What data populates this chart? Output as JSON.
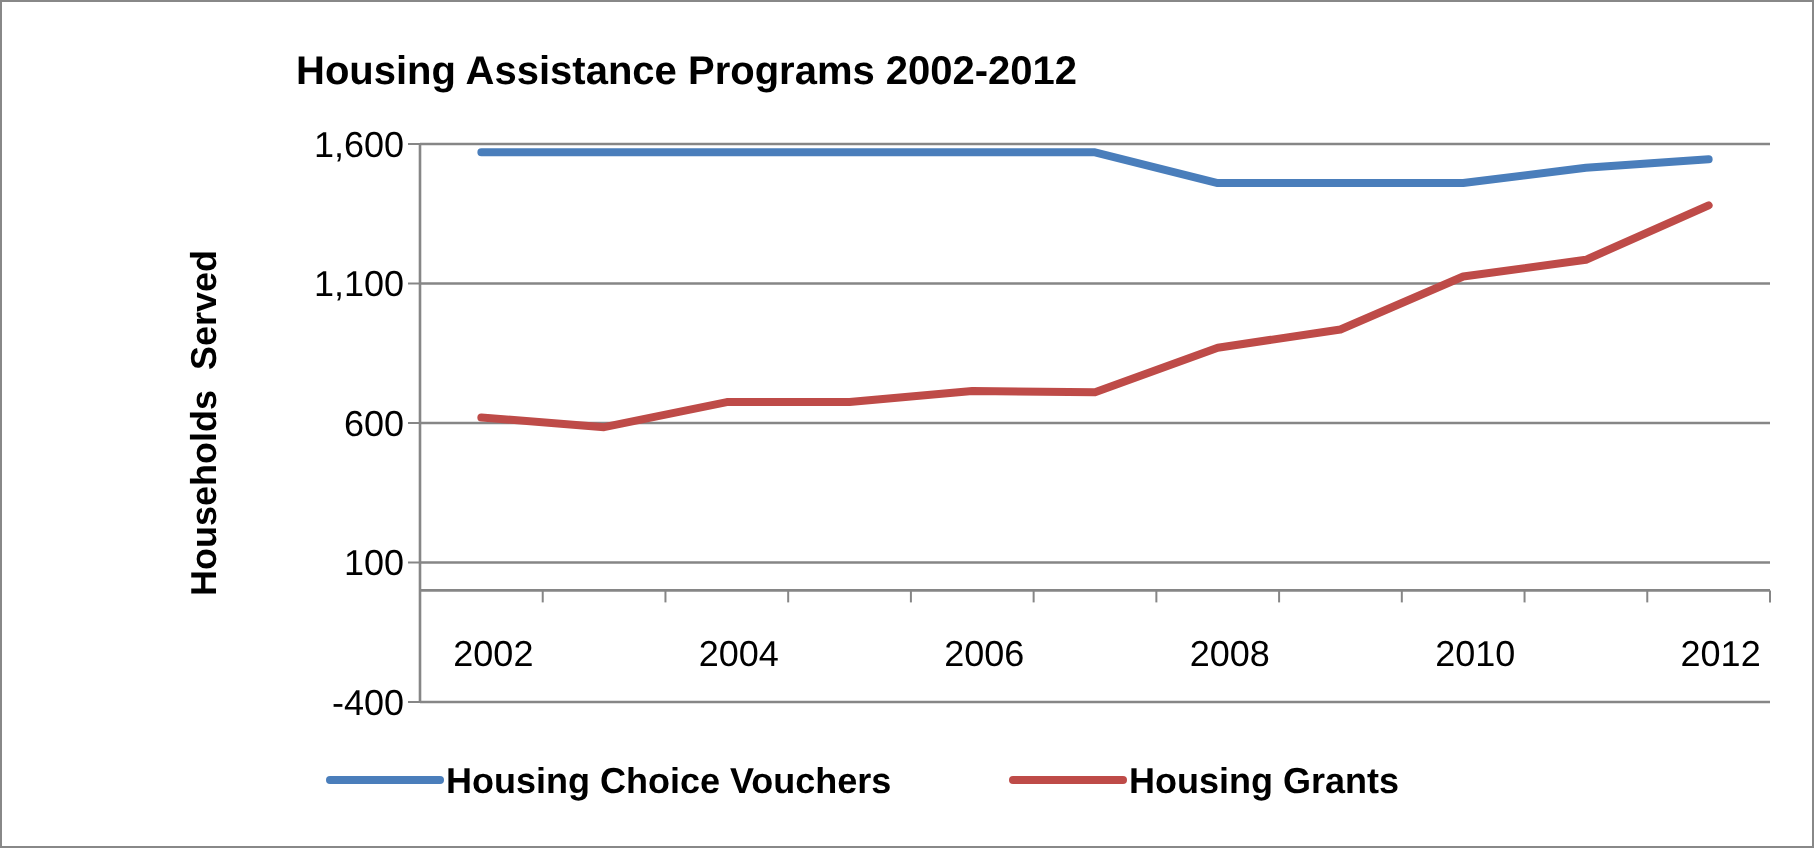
{
  "chart_data": {
    "type": "line",
    "title": "Housing Assistance Programs 2002-2012",
    "ylabel": "Households  Served",
    "categories": [
      "2002",
      null,
      "2004",
      null,
      "2006",
      null,
      "2008",
      null,
      "2010",
      null,
      "2012"
    ],
    "series": [
      {
        "name": "Housing Choice Vouchers",
        "color": "#4a7ebb",
        "values": [
          1570,
          1570,
          1570,
          1570,
          1570,
          1570,
          1460,
          1460,
          1460,
          1515,
          1545
        ]
      },
      {
        "name": "Housing Grants",
        "color": "#be4b48",
        "values": [
          620,
          585,
          675,
          675,
          715,
          710,
          870,
          935,
          1125,
          1185,
          1380
        ]
      }
    ],
    "ylim": [
      -400,
      1600
    ],
    "yticks": [
      {
        "value": -400,
        "label": "-400"
      },
      100,
      600,
      {
        "value": 1100,
        "label": "1,100"
      },
      {
        "value": 1600,
        "label": "1,600"
      }
    ],
    "grid": "y",
    "legend": "bottom",
    "marker": "none",
    "line_style": "solid"
  }
}
